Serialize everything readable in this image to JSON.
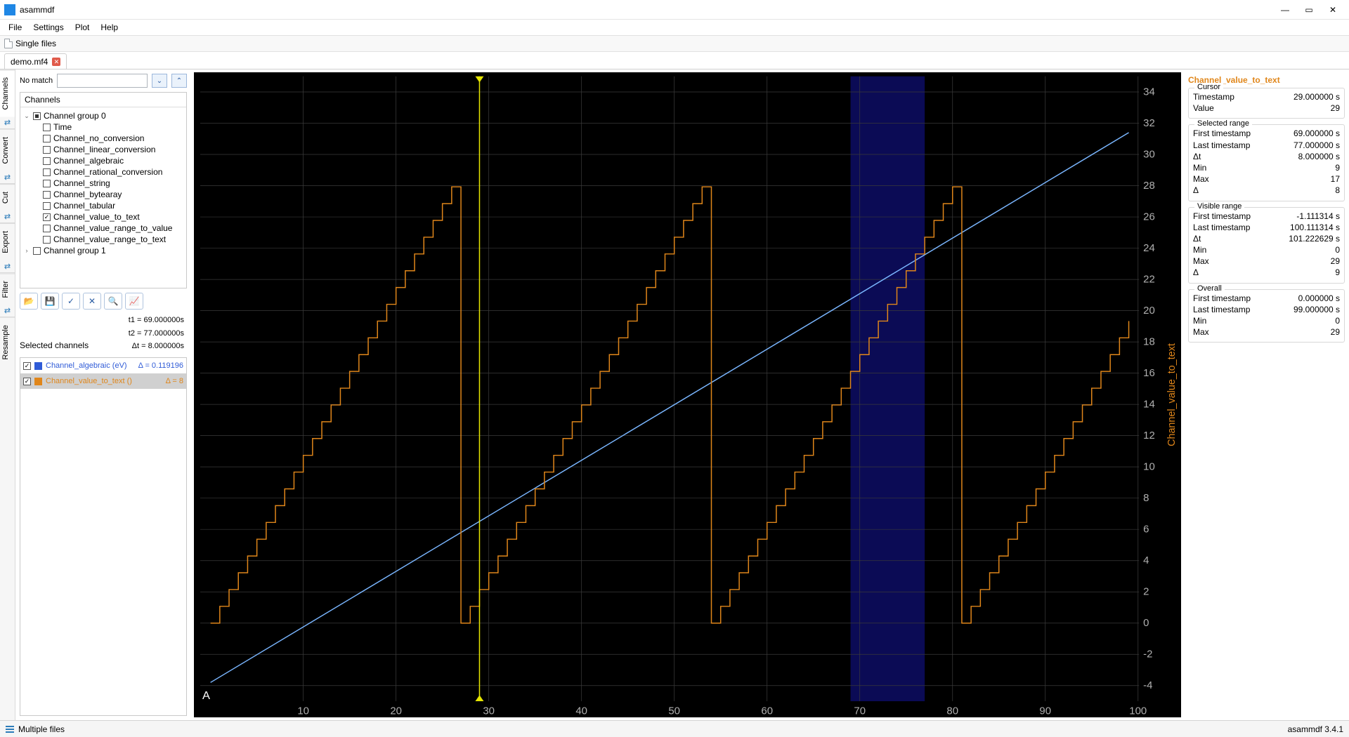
{
  "app": {
    "title": "asammdf",
    "version_label": "asammdf 3.4.1"
  },
  "menubar": [
    "File",
    "Settings",
    "Plot",
    "Help"
  ],
  "toolbar": {
    "single_files_label": "Single files"
  },
  "tabs": [
    {
      "label": "demo.mf4",
      "closable": true
    }
  ],
  "vtabs": [
    "Channels",
    "Convert",
    "Cut",
    "Export",
    "Filter",
    "Resample"
  ],
  "search": {
    "no_match_label": "No match",
    "value": ""
  },
  "tree": {
    "header": "Channels",
    "groups": [
      {
        "label": "Channel group 0",
        "expanded": true,
        "checked": "partial",
        "children": [
          {
            "label": "Time",
            "checked": false
          },
          {
            "label": "Channel_no_conversion",
            "checked": false
          },
          {
            "label": "Channel_linear_conversion",
            "checked": false
          },
          {
            "label": "Channel_algebraic",
            "checked": false
          },
          {
            "label": "Channel_rational_conversion",
            "checked": false
          },
          {
            "label": "Channel_string",
            "checked": false
          },
          {
            "label": "Channel_bytearay",
            "checked": false
          },
          {
            "label": "Channel_tabular",
            "checked": false
          },
          {
            "label": "Channel_value_to_text",
            "checked": true
          },
          {
            "label": "Channel_value_range_to_value",
            "checked": false
          },
          {
            "label": "Channel_value_range_to_text",
            "checked": false
          }
        ]
      },
      {
        "label": "Channel group 1",
        "expanded": false,
        "checked": false,
        "children": []
      }
    ]
  },
  "toolbtns": {
    "open": "📂",
    "save": "💾",
    "check": "✓",
    "clear": "✕",
    "search": "🔍",
    "plot": "📈"
  },
  "timing": {
    "t1": "t1 = 69.000000s",
    "t2": "t2 = 77.000000s",
    "dt": "Δt = 8.000000s"
  },
  "selchan_label": "Selected channels",
  "selected_channels": [
    {
      "label": "Channel_algebraic (eV)",
      "delta": "Δ = 0.119196",
      "color": "#2f5bd7",
      "selected": false
    },
    {
      "label": "Channel_value_to_text ()",
      "delta": "Δ = 8",
      "color": "#e0861a",
      "selected": true
    }
  ],
  "statusbar": {
    "multi_label": "Multiple files"
  },
  "info_title": "Channel_value_to_text",
  "info_groups": [
    {
      "label": "Cursor",
      "rows": [
        [
          "Timestamp",
          "29.000000 s"
        ],
        [
          "Value",
          "29"
        ]
      ]
    },
    {
      "label": "Selected range",
      "rows": [
        [
          "First timestamp",
          "69.000000 s"
        ],
        [
          "Last timestamp",
          "77.000000 s"
        ],
        [
          "Δt",
          "8.000000 s"
        ],
        [
          "Min",
          "9"
        ],
        [
          "Max",
          "17"
        ],
        [
          "Δ",
          "8"
        ]
      ]
    },
    {
      "label": "Visible range",
      "rows": [
        [
          "First timestamp",
          "-1.111314 s"
        ],
        [
          "Last timestamp",
          "100.111314 s"
        ],
        [
          "Δt",
          "101.222629 s"
        ],
        [
          "Min",
          "0"
        ],
        [
          "Max",
          "29"
        ],
        [
          "Δ",
          "9"
        ]
      ]
    },
    {
      "label": "Overall",
      "rows": [
        [
          "First timestamp",
          "0.000000 s"
        ],
        [
          "Last timestamp",
          "99.000000 s"
        ],
        [
          "Min",
          "0"
        ],
        [
          "Max",
          "29"
        ]
      ]
    }
  ],
  "plot": {
    "bg": "#000000",
    "grid_color": "#3a3a3a",
    "axis_text_color": "#b0b0b0",
    "yaxis_label": "Channel_value_to_text",
    "yaxis_label_color": "#e0861a",
    "xlim": [
      -1.11,
      100.11
    ],
    "ylim": [
      -5,
      35
    ],
    "yticks": [
      -4,
      -2,
      0,
      2,
      4,
      6,
      8,
      10,
      12,
      14,
      16,
      18,
      20,
      22,
      24,
      26,
      28,
      30,
      32,
      34
    ],
    "xticks": [
      10,
      20,
      30,
      40,
      50,
      60,
      70,
      80,
      90,
      100
    ],
    "cursor_t": 29,
    "cursor_color": "#e6e600",
    "sel_start": 69,
    "sel_end": 77,
    "sel_color": "#0b0b55",
    "series": [
      {
        "type": "line",
        "color": "#7ab6ff",
        "width": 1,
        "x0": 0,
        "x1": 99,
        "y0_frac": 0.97,
        "y1_frac": 0.09
      },
      {
        "type": "sawtooth",
        "color": "#e0861a",
        "width": 1,
        "period": 27,
        "low": 0,
        "high": 29,
        "x0": 0,
        "x1": 99,
        "step": 1
      }
    ]
  }
}
